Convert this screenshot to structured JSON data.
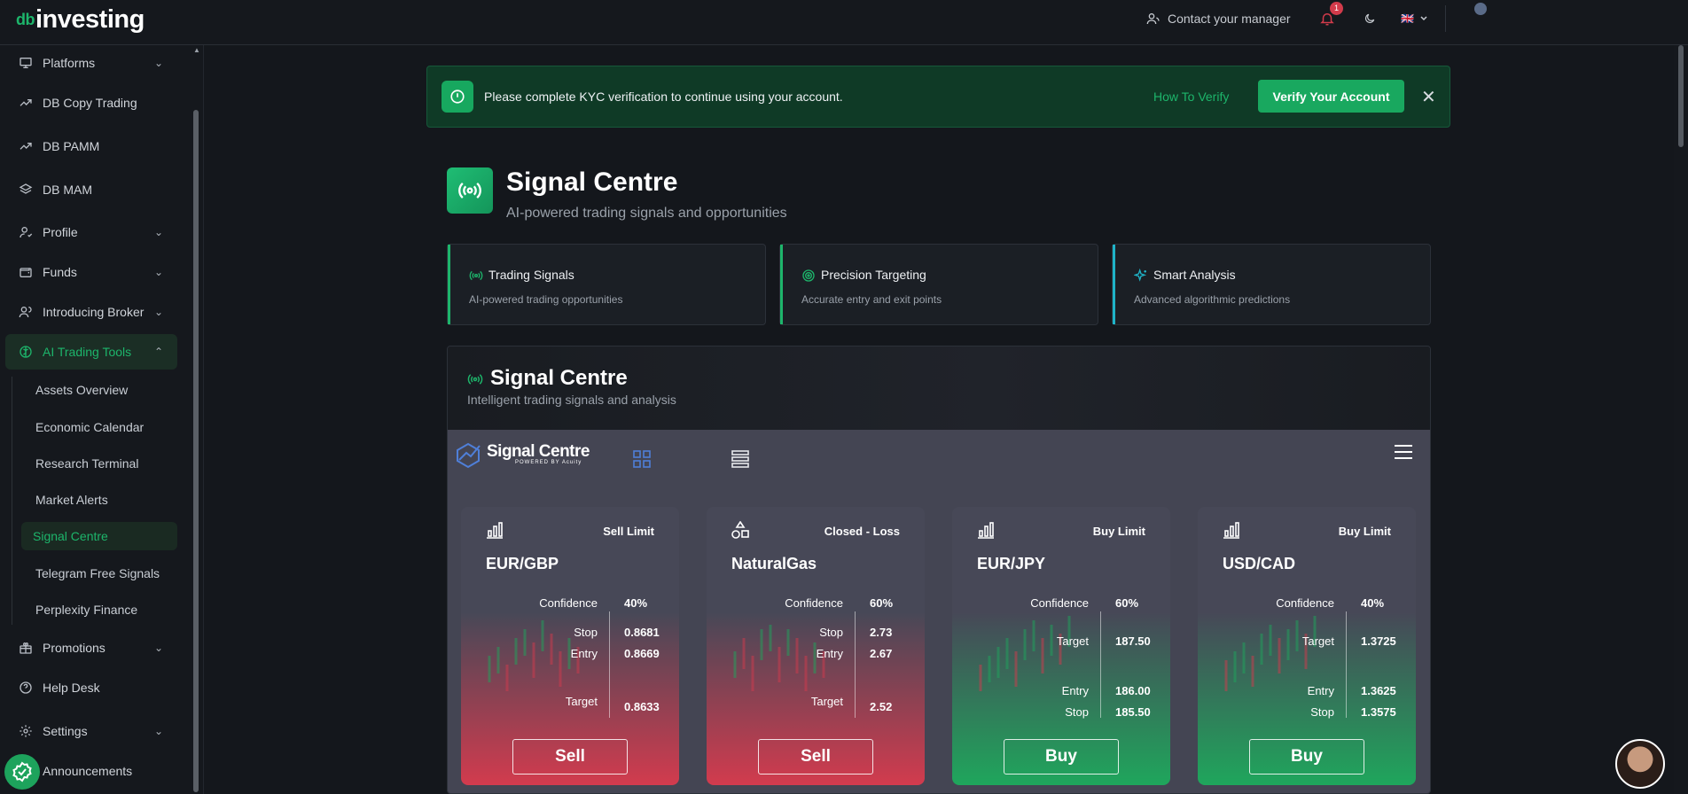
{
  "brand": {
    "logo_mark": "db",
    "logo_text": "investing"
  },
  "topbar": {
    "contact": "Contact your manager",
    "notifications_count": "1",
    "lang_flag": "🇬🇧"
  },
  "sidebar": {
    "items": [
      {
        "label": "Platforms",
        "icon": "monitor-icon",
        "has_chevron": true
      },
      {
        "label": "DB Copy Trading",
        "icon": "trending-up-icon"
      },
      {
        "label": "DB PAMM",
        "icon": "trending-up-icon"
      },
      {
        "label": "DB MAM",
        "icon": "layers-icon"
      },
      {
        "label": "Profile",
        "icon": "user-icon",
        "has_chevron": true
      },
      {
        "label": "Funds",
        "icon": "wallet-icon",
        "has_chevron": true
      },
      {
        "label": "Introducing Broker",
        "icon": "users-icon",
        "has_chevron": true
      },
      {
        "label": "AI Trading Tools",
        "icon": "brain-icon",
        "has_chevron": true,
        "active": true
      }
    ],
    "sub_items": [
      {
        "label": "Assets Overview"
      },
      {
        "label": "Economic Calendar"
      },
      {
        "label": "Research Terminal"
      },
      {
        "label": "Market Alerts"
      },
      {
        "label": "Signal Centre",
        "active": true
      },
      {
        "label": "Telegram Free Signals"
      },
      {
        "label": "Perplexity Finance"
      }
    ],
    "bottom_items": [
      {
        "label": "Promotions",
        "icon": "gift-icon",
        "has_chevron": true
      },
      {
        "label": "Help Desk",
        "icon": "help-circle-icon"
      },
      {
        "label": "Settings",
        "icon": "gear-icon",
        "has_chevron": true
      },
      {
        "label": "Announcements",
        "icon": "megaphone-icon"
      }
    ]
  },
  "kyc": {
    "message": "Please complete KYC verification to continue using your account.",
    "how_to": "How To Verify",
    "verify_button": "Verify Your Account"
  },
  "header": {
    "title": "Signal Centre",
    "subtitle": "AI-powered trading signals and opportunities"
  },
  "features": [
    {
      "title": "Trading Signals",
      "desc": "AI-powered trading opportunities",
      "accent": "#1db56b"
    },
    {
      "title": "Precision Targeting",
      "desc": "Accurate entry and exit points",
      "accent": "#1db56b"
    },
    {
      "title": "Smart Analysis",
      "desc": "Advanced algorithmic predictions",
      "accent": "#1fb3c8"
    }
  ],
  "signal_panel": {
    "title": "Signal Centre",
    "subtitle": "Intelligent trading signals and analysis",
    "widget_logo": "Signal Centre",
    "widget_powered": "POWERED BY Acuity"
  },
  "cards": [
    {
      "icon": "bar-chart-icon",
      "type": "Sell Limit",
      "symbol": "EUR/GBP",
      "side": "sell",
      "confidence_label": "Confidence",
      "confidence": "40%",
      "rows": [
        {
          "label": "Stop",
          "value": "0.8681"
        },
        {
          "label": "Entry",
          "value": "0.8669"
        },
        {
          "label": "Target",
          "value": "0.8633"
        }
      ],
      "action": "Sell"
    },
    {
      "icon": "shapes-icon",
      "type": "Closed - Loss",
      "symbol": "NaturalGas",
      "side": "sell",
      "confidence_label": "Confidence",
      "confidence": "60%",
      "rows": [
        {
          "label": "Stop",
          "value": "2.73"
        },
        {
          "label": "Entry",
          "value": "2.67"
        },
        {
          "label": "Target",
          "value": "2.52"
        }
      ],
      "action": "Sell"
    },
    {
      "icon": "bar-chart-icon",
      "type": "Buy Limit",
      "symbol": "EUR/JPY",
      "side": "buy",
      "confidence_label": "Confidence",
      "confidence": "60%",
      "rows": [
        {
          "label": "Target",
          "value": "187.50"
        },
        {
          "label": "Entry",
          "value": "186.00"
        },
        {
          "label": "Stop",
          "value": "185.50"
        }
      ],
      "action": "Buy"
    },
    {
      "icon": "bar-chart-icon",
      "type": "Buy Limit",
      "symbol": "USD/CAD",
      "side": "buy",
      "confidence_label": "Confidence",
      "confidence": "40%",
      "rows": [
        {
          "label": "Target",
          "value": "1.3725"
        },
        {
          "label": "Entry",
          "value": "1.3625"
        },
        {
          "label": "Stop",
          "value": "1.3575"
        }
      ],
      "action": "Buy"
    }
  ],
  "colors": {
    "accent": "#1db56b",
    "sell": "#d23b4e",
    "buy": "#1fa65c"
  }
}
